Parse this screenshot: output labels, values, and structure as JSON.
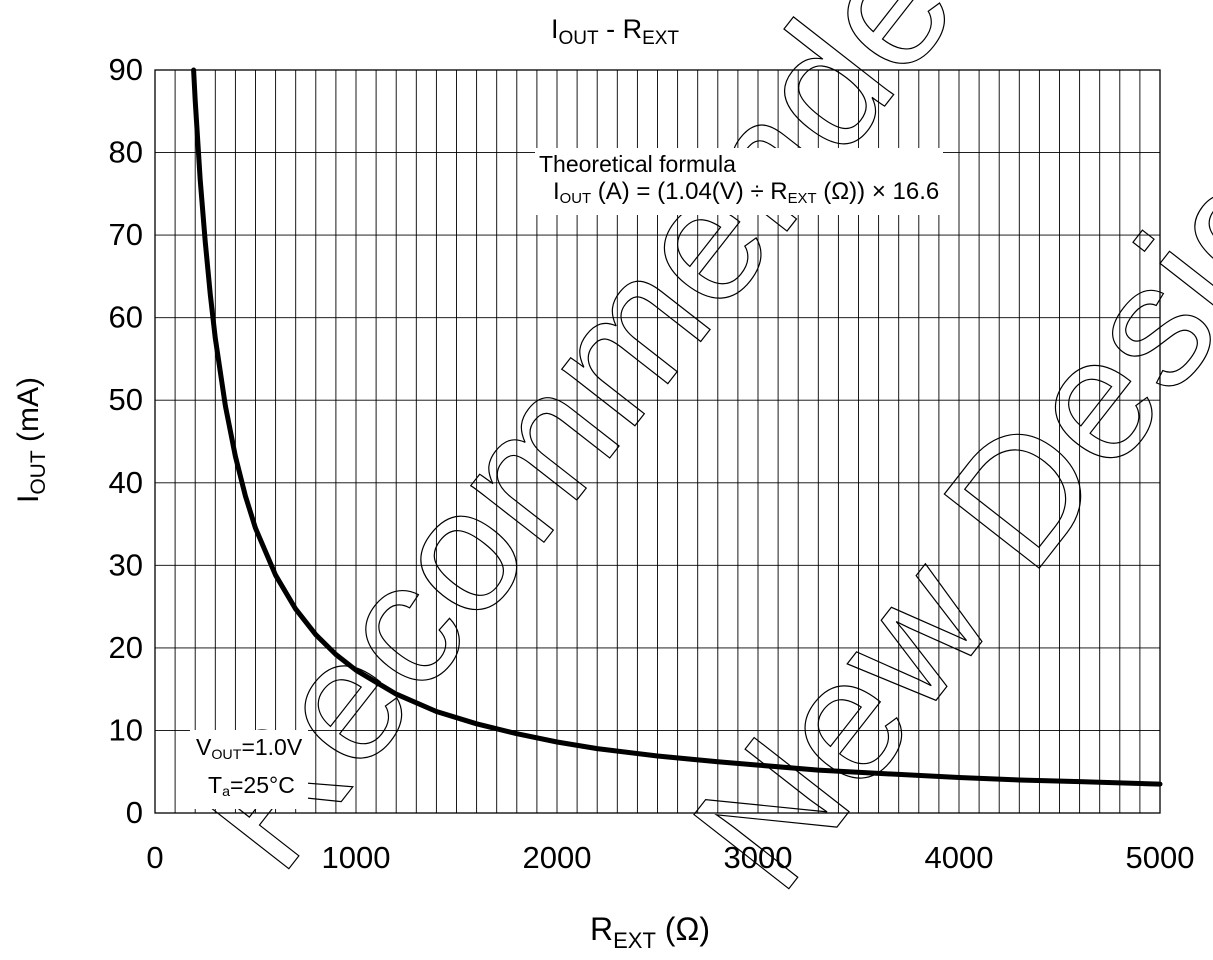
{
  "chart_data": {
    "type": "line",
    "title": {
      "main": "I",
      "main_sub": "OUT",
      "sep": " - ",
      "second": "R",
      "second_sub": "EXT"
    },
    "xlabel": {
      "main": "R",
      "sub": "EXT",
      "unit": " (Ω)"
    },
    "ylabel": {
      "main": "I",
      "sub": "OUT",
      "unit": " (mA)"
    },
    "xlim": [
      0,
      5000
    ],
    "ylim": [
      0,
      90
    ],
    "x_major_ticks": [
      0,
      1000,
      2000,
      3000,
      4000,
      5000
    ],
    "x_tick_labels": [
      "0",
      "1000",
      "2000",
      "3000",
      "4000",
      "5000"
    ],
    "y_ticks": [
      0,
      10,
      20,
      30,
      40,
      50,
      60,
      70,
      80,
      90
    ],
    "y_tick_labels": [
      "0",
      "10",
      "20",
      "30",
      "40",
      "50",
      "60",
      "70",
      "80",
      "90"
    ],
    "x_minor_step": 100,
    "grid": true,
    "series": [
      {
        "name": "",
        "color": "#000000",
        "x": [
          190,
          200,
          225,
          250,
          275,
          300,
          350,
          400,
          450,
          500,
          600,
          700,
          800,
          900,
          1000,
          1200,
          1400,
          1600,
          1800,
          2000,
          2200,
          2500,
          2800,
          3000,
          3300,
          3600,
          4000,
          4300,
          4600,
          5000
        ],
        "y": [
          90.9,
          86.3,
          76.7,
          69.1,
          62.8,
          57.5,
          49.3,
          43.2,
          38.4,
          34.5,
          28.8,
          24.7,
          21.6,
          19.2,
          17.3,
          14.4,
          12.3,
          10.8,
          9.6,
          8.6,
          7.8,
          6.9,
          6.2,
          5.8,
          5.2,
          4.8,
          4.3,
          4.0,
          3.8,
          3.5
        ]
      }
    ],
    "annotations": {
      "formula_heading": "Theoretical formula",
      "formula": {
        "p1": "I",
        "p1_sub": "OUT",
        "p2": " (A) = (1.04(V) ÷ R",
        "p2_sub": "EXT",
        "p3": " (Ω)) × 16.6"
      },
      "condition_v": {
        "main": "V",
        "sub": "OUT",
        "value": "=1.0V"
      },
      "condition_t": {
        "main": "T",
        "sub": "a",
        "value": "=25°C"
      }
    },
    "watermark": "Not Recommended for New Design"
  }
}
